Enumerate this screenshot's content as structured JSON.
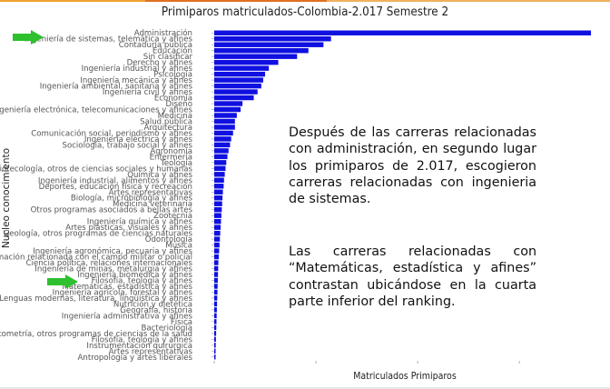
{
  "colors": {
    "bar": "#1010e0",
    "arrow": "#2ec02e",
    "axis_text": "#555555",
    "tick": "#9a9a9a"
  },
  "chart_data": {
    "type": "bar",
    "orientation": "horizontal",
    "title": "Primiparos matriculados-Colombia-2.017 Semestre 2",
    "xlabel": "Matriculados Primiparos",
    "ylabel": "Nucleo conocimiento",
    "xlim": [
      0,
      100
    ],
    "categories": [
      "Administración",
      "Ingeniería de sistemas, telemática y afines",
      "Contaduría pública",
      "Educación",
      "Sin clasificar",
      "Derecho y afines",
      "Ingeniería industrial y afines",
      "Psicología",
      "Ingeniería mecánica y afines",
      "Ingeniería ambiental, sanitaria y afines",
      "Ingeniería civil y afines",
      "Economía",
      "Diseño",
      "Ingeniería electrónica, telecomunicaciones y afines",
      "Medicina",
      "Salud pública",
      "Arquitectura",
      "Comunicación social, periodismo y afines",
      "Ingeniería eléctrica y afines",
      "Sociología, trabajo social y afines",
      "Agronomía",
      "Enfermería",
      "Teología",
      "Bibliotecología, otros de ciencias sociales y humanas",
      "Química y afines",
      "Ingeniería industrial, alimentos y afines",
      "Deportes, educación física y recreación",
      "Artes representativas",
      "Biología, microbiología y afines",
      "Medicina veterinaria",
      "Otros programas asociados a bellas artes",
      "Zootecnia",
      "Ingeniería química y afines",
      "Artes plásticas, visuales y afines",
      "Geología, otros programas de ciencias naturales",
      "Odontología",
      "Música",
      "Ingeniería agronómica, pecuaria y afines",
      "Formación relacionada con el campo militar o policial",
      "Ciencia política, relaciones internacionales",
      "Ingeniería de minas, metalurgia y afines",
      "Ingeniería biomédica y afines",
      "Filosofía, teología y afines",
      "Matemáticas, estadística y afines",
      "Ingeniería agrícola, forestal y afines",
      "Lenguas modernas, literatura, lingüística y afines",
      "Nutrición y dietética",
      "Geografía, historia",
      "Ingeniería administrativa y afines",
      "Física",
      "Bacteriología",
      "Optometría, otros programas de ciencias de la salud",
      "Filosofía, teología y afines",
      "Instrumentación quirúrgica",
      "Artes representativas",
      "Antropología y artes liberales"
    ],
    "values": [
      100,
      31,
      29,
      25,
      22,
      17,
      14.5,
      13.5,
      13,
      12.5,
      11.5,
      10.5,
      7.5,
      7,
      6,
      5.5,
      5.5,
      5,
      4.5,
      4.2,
      3.8,
      3.5,
      3.2,
      3,
      2.8,
      2.6,
      2.5,
      2.3,
      2.2,
      2.1,
      2,
      1.9,
      1.8,
      1.7,
      1.6,
      1.5,
      1.4,
      1.3,
      1.2,
      1.1,
      1.05,
      1,
      0.95,
      0.9,
      0.85,
      0.8,
      0.75,
      0.7,
      0.65,
      0.6,
      0.55,
      0.5,
      0.45,
      0.4,
      0.35,
      0.3
    ],
    "grid": false,
    "highlighted_categories": [
      "Ingeniería de sistemas, telemática y afines",
      "Matemáticas, estadística y afines"
    ]
  },
  "annotations": {
    "paragraph_1": "Después de las carreras relacionadas con administración, en segundo lugar los primiparos de 2.017, escogieron carreras relacionadas con ingenieria de sistemas.",
    "paragraph_2": "Las carreras relacionadas con “Matemáticas, estadística y afines” contrastan ubicándose en la cuarta parte inferior del ranking."
  }
}
